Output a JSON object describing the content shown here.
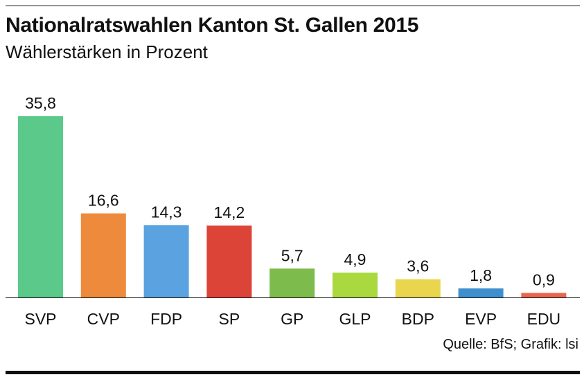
{
  "header": {
    "title": "Nationalratswahlen Kanton St. Gallen 2015",
    "subtitle": "Wählerstärken in Prozent"
  },
  "footer": {
    "source": "Quelle: BfS; Grafik: lsi"
  },
  "chart_data": {
    "type": "bar",
    "title": "Nationalratswahlen Kanton St. Gallen 2015",
    "subtitle": "Wählerstärken in Prozent",
    "xlabel": "",
    "ylabel": "",
    "ylim": [
      0,
      35.8
    ],
    "grid": false,
    "categories": [
      "SVP",
      "CVP",
      "FDP",
      "SP",
      "GP",
      "GLP",
      "BDP",
      "EVP",
      "EDU"
    ],
    "values": [
      35.8,
      16.6,
      14.3,
      14.2,
      5.7,
      4.9,
      3.6,
      1.8,
      0.9
    ],
    "value_labels": [
      "35,8",
      "16,6",
      "14,3",
      "14,2",
      "5,7",
      "4,9",
      "3,6",
      "1,8",
      "0,9"
    ],
    "colors": [
      "#5ac98a",
      "#ee8a3c",
      "#5ba3e0",
      "#dd4438",
      "#7dbb4c",
      "#a9d93f",
      "#e9d54e",
      "#3f8fcf",
      "#e8674f"
    ]
  }
}
